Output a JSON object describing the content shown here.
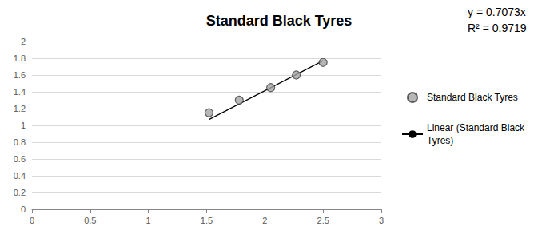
{
  "chart_data": {
    "type": "scatter",
    "title": "Standard Black Tyres",
    "series": [
      {
        "name": "Standard Black Tyres",
        "type": "scatter",
        "marker": "circle",
        "color": "#a5a5a5",
        "x": [
          1.52,
          1.78,
          2.05,
          2.27,
          2.5
        ],
        "values": [
          1.15,
          1.3,
          1.45,
          1.6,
          1.75
        ]
      },
      {
        "name": "Linear (Standard Black Tyres)",
        "type": "line",
        "line_style": "solid",
        "color": "#000000",
        "x": [
          1.52,
          2.5
        ],
        "values": [
          1.07,
          1.77
        ]
      }
    ],
    "xlim": [
      0,
      3
    ],
    "xticks": [
      0,
      0.5,
      1,
      1.5,
      2,
      2.5,
      3
    ],
    "ylim": [
      0,
      2
    ],
    "yticks": [
      0,
      0.2,
      0.4,
      0.6,
      0.8,
      1,
      1.2,
      1.4,
      1.6,
      1.8,
      2
    ],
    "grid": "y",
    "legend": "right",
    "annotations": [
      "y = 0.7073x",
      "R² = 0.9719"
    ]
  }
}
